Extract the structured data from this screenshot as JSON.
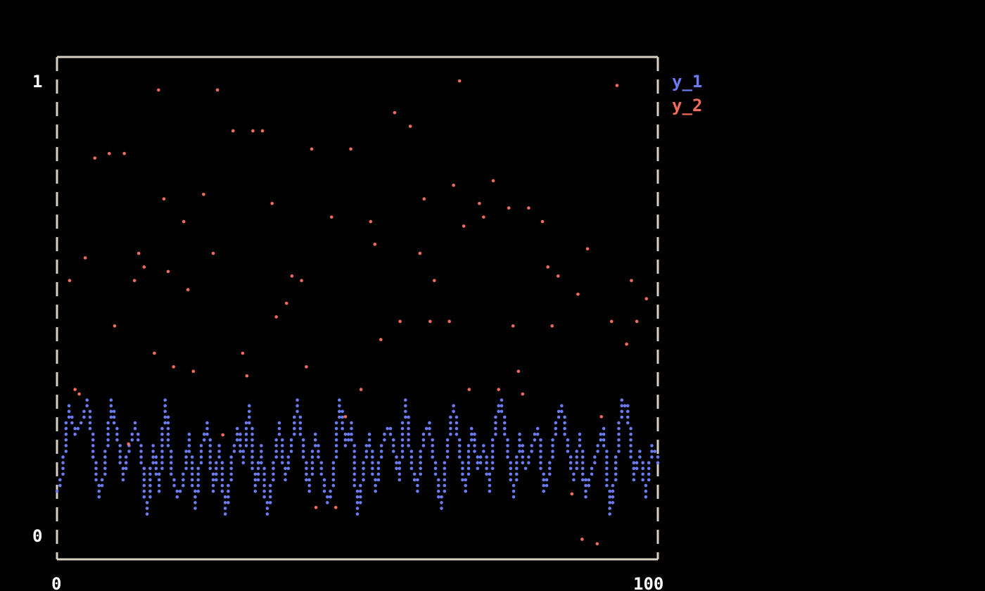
{
  "chart_data": {
    "type": "line",
    "title": "",
    "xlabel": "",
    "ylabel": "",
    "xlim": [
      0,
      100
    ],
    "ylim": [
      0,
      1
    ],
    "x_ticks": [
      "0",
      "100"
    ],
    "y_ticks": [
      "0",
      "1"
    ],
    "grid": false,
    "legend_placement": "right",
    "series": [
      {
        "name": "y_1",
        "type": "line",
        "color": "#6b7cf2",
        "y": [
          0.1,
          0.15,
          0.28,
          0.22,
          0.25,
          0.3,
          0.2,
          0.08,
          0.15,
          0.3,
          0.22,
          0.12,
          0.2,
          0.25,
          0.18,
          0.05,
          0.2,
          0.1,
          0.3,
          0.15,
          0.08,
          0.12,
          0.22,
          0.06,
          0.18,
          0.25,
          0.1,
          0.2,
          0.05,
          0.14,
          0.24,
          0.16,
          0.28,
          0.1,
          0.2,
          0.04,
          0.15,
          0.25,
          0.12,
          0.2,
          0.3,
          0.18,
          0.1,
          0.22,
          0.15,
          0.07,
          0.12,
          0.3,
          0.2,
          0.25,
          0.05,
          0.15,
          0.22,
          0.1,
          0.18,
          0.24,
          0.2,
          0.12,
          0.3,
          0.16,
          0.1,
          0.22,
          0.25,
          0.14,
          0.06,
          0.2,
          0.28,
          0.18,
          0.1,
          0.24,
          0.15,
          0.2,
          0.1,
          0.26,
          0.3,
          0.18,
          0.08,
          0.22,
          0.14,
          0.2,
          0.24,
          0.1,
          0.15,
          0.25,
          0.28,
          0.2,
          0.12,
          0.22,
          0.08,
          0.14,
          0.2,
          0.24,
          0.04,
          0.15,
          0.3,
          0.28,
          0.12,
          0.18,
          0.08,
          0.2,
          0.16
        ]
      },
      {
        "name": "y_2",
        "type": "scatter",
        "color": "#f26b5b",
        "points": [
          [
            2.1,
            0.56
          ],
          [
            3.0,
            0.32
          ],
          [
            3.7,
            0.31
          ],
          [
            4.7,
            0.61
          ],
          [
            6.3,
            0.83
          ],
          [
            8.7,
            0.84
          ],
          [
            9.6,
            0.46
          ],
          [
            11.2,
            0.84
          ],
          [
            11.9,
            0.2
          ],
          [
            12.9,
            0.56
          ],
          [
            13.6,
            0.62
          ],
          [
            14.5,
            0.59
          ],
          [
            16.2,
            0.4
          ],
          [
            16.9,
            0.98
          ],
          [
            17.8,
            0.74
          ],
          [
            18.5,
            0.58
          ],
          [
            19.4,
            0.37
          ],
          [
            21.1,
            0.69
          ],
          [
            21.8,
            0.54
          ],
          [
            22.7,
            0.36
          ],
          [
            24.4,
            0.75
          ],
          [
            26.0,
            0.62
          ],
          [
            26.7,
            0.98
          ],
          [
            27.6,
            0.22
          ],
          [
            29.3,
            0.89
          ],
          [
            30.9,
            0.4
          ],
          [
            31.6,
            0.35
          ],
          [
            32.6,
            0.89
          ],
          [
            34.2,
            0.89
          ],
          [
            35.8,
            0.73
          ],
          [
            36.5,
            0.48
          ],
          [
            38.2,
            0.51
          ],
          [
            39.1,
            0.57
          ],
          [
            40.7,
            0.56
          ],
          [
            41.5,
            0.37
          ],
          [
            42.4,
            0.85
          ],
          [
            43.1,
            0.06
          ],
          [
            45.7,
            0.7
          ],
          [
            46.4,
            0.06
          ],
          [
            48.0,
            0.26
          ],
          [
            48.9,
            0.85
          ],
          [
            50.6,
            0.32
          ],
          [
            52.2,
            0.69
          ],
          [
            52.9,
            0.64
          ],
          [
            53.9,
            0.43
          ],
          [
            56.2,
            0.93
          ],
          [
            57.1,
            0.47
          ],
          [
            58.8,
            0.9
          ],
          [
            60.4,
            0.62
          ],
          [
            61.1,
            0.74
          ],
          [
            62.1,
            0.47
          ],
          [
            62.8,
            0.56
          ],
          [
            65.3,
            0.47
          ],
          [
            66.0,
            0.77
          ],
          [
            67.0,
            1.0
          ],
          [
            67.7,
            0.68
          ],
          [
            68.6,
            0.32
          ],
          [
            70.3,
            0.73
          ],
          [
            71.0,
            0.7
          ],
          [
            72.6,
            0.78
          ],
          [
            73.5,
            0.32
          ],
          [
            75.2,
            0.72
          ],
          [
            75.9,
            0.46
          ],
          [
            76.8,
            0.36
          ],
          [
            77.5,
            0.31
          ],
          [
            78.5,
            0.72
          ],
          [
            80.8,
            0.69
          ],
          [
            81.7,
            0.59
          ],
          [
            82.4,
            0.46
          ],
          [
            83.4,
            0.57
          ],
          [
            85.7,
            0.09
          ],
          [
            86.7,
            0.53
          ],
          [
            87.4,
            -0.01
          ],
          [
            88.3,
            0.63
          ],
          [
            89.9,
            -0.02
          ],
          [
            90.6,
            0.26
          ],
          [
            92.3,
            0.47
          ],
          [
            93.2,
            0.99
          ],
          [
            94.8,
            0.42
          ],
          [
            95.6,
            0.56
          ],
          [
            96.5,
            0.47
          ],
          [
            98.1,
            0.52
          ]
        ]
      }
    ]
  }
}
